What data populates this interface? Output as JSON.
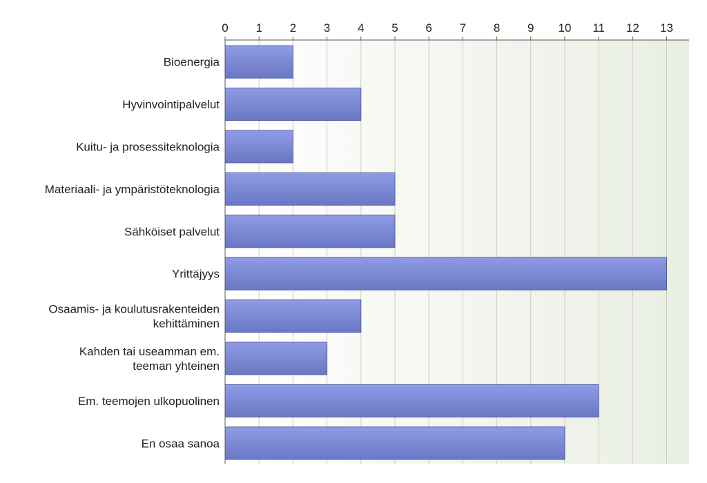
{
  "chart_data": {
    "type": "bar",
    "orientation": "horizontal",
    "categories": [
      [
        "Bioenergia"
      ],
      [
        "Hyvinvointipalvelut"
      ],
      [
        "Kuitu- ja prosessiteknologia"
      ],
      [
        "Materiaali- ja ympäristöteknologia"
      ],
      [
        "Sähköiset palvelut"
      ],
      [
        "Yrittäjyys"
      ],
      [
        "Osaamis- ja koulutusrakenteiden",
        "kehittäminen"
      ],
      [
        "Kahden tai useamman em.",
        "teeman yhteinen"
      ],
      [
        "Em. teemojen ulkopuolinen"
      ],
      [
        "En osaa sanoa"
      ]
    ],
    "values": [
      2,
      4,
      2,
      5,
      5,
      13,
      4,
      3,
      11,
      10
    ],
    "x_ticks": [
      "0",
      "1",
      "2",
      "3",
      "4",
      "5",
      "6",
      "7",
      "8",
      "9",
      "10",
      "11",
      "12",
      "13"
    ],
    "xlim": [
      0,
      13.66
    ],
    "axis_position": "top",
    "grid": true,
    "colors": {
      "bar_top": "#8f9be6",
      "bar_bottom": "#6a77c4",
      "bar_edge": "#55609e",
      "plot_bg_left": "#ffffff",
      "plot_bg_right": "#e9eee3",
      "grid": "#c8ccc4",
      "axis": "#555555"
    }
  }
}
